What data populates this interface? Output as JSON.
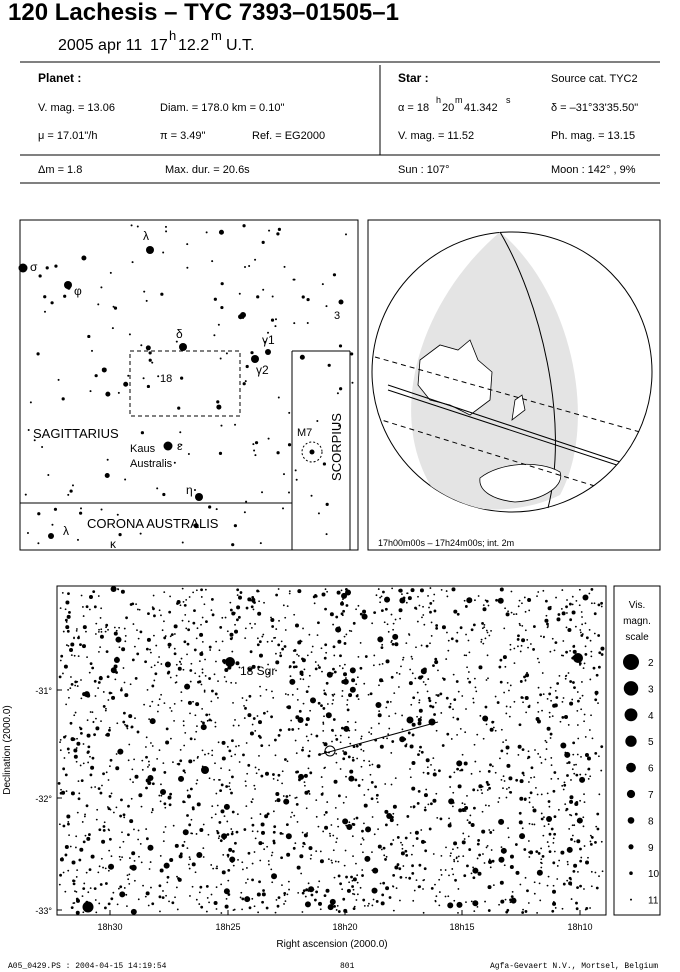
{
  "header": {
    "title": "120 Lachesis  –  TYC 7393–01505–1",
    "date": "2005 apr 11",
    "time": [
      "17",
      "h",
      "12.2",
      "m"
    ],
    "tz": "U.T."
  },
  "planet": {
    "heading": "Planet :",
    "vmag": "V. mag. = 13.06",
    "diam": "Diam. = 178.0 km = 0.10\"",
    "mu": "μ = 17.01\"/h",
    "pi": "π =  3.49\"",
    "ref": "Ref. = EG2000"
  },
  "star": {
    "heading": "Star :",
    "source": "Source cat.  TYC2",
    "alpha": [
      "α = 18",
      "h",
      "20",
      "m",
      "41.342",
      "s"
    ],
    "delta": "δ = –31°33'35.50\"",
    "vmag": "V. mag. = 11.52",
    "phmag": "Ph. mag. = 13.15"
  },
  "summary": {
    "dm": "Δm = 1.8",
    "maxdur": "Max. dur. = 20.6s",
    "sun": "Sun : 107°",
    "moon": "Moon : 142° ,  9%"
  },
  "finder": {
    "lambda": "λ",
    "sigma": "σ",
    "phi": "φ",
    "delta": "δ",
    "gamma1": "γ1",
    "gamma2": "γ2",
    "three": "3",
    "eighteen": "18",
    "sagittarius": "SAGITTARIUS",
    "kaus": "Kaus",
    "epsilon": "ε",
    "australis": "Australis",
    "m7": "M7",
    "scorpius": "SCORPIUS",
    "eta": "η",
    "cra": "CORONA AUSTRALIS",
    "lambda2": "λ",
    "kappa": "κ"
  },
  "globe": {
    "caption": "17h00m00s – 17h24m00s; int.  2m"
  },
  "field": {
    "star_label": "18 Sgr",
    "ylabel": "Declination (2000.0)",
    "xlabel": "Right ascension (2000.0)",
    "yticks": [
      "-31°",
      "-32°",
      "-33°"
    ],
    "xticks": [
      "18h30",
      "18h25",
      "18h20",
      "18h15",
      "18h10"
    ]
  },
  "scale": {
    "title": [
      "Vis.",
      "magn.",
      "scale"
    ],
    "mags": [
      "2",
      "3",
      "4",
      "5",
      "6",
      "7",
      "8",
      "9",
      "10",
      "11"
    ]
  },
  "footer": {
    "left": "A05_0429.PS : 2004-04-15 14:19:54",
    "center": "801",
    "right": "Agfa-Gevaert N.V., Mortsel, Belgium"
  }
}
